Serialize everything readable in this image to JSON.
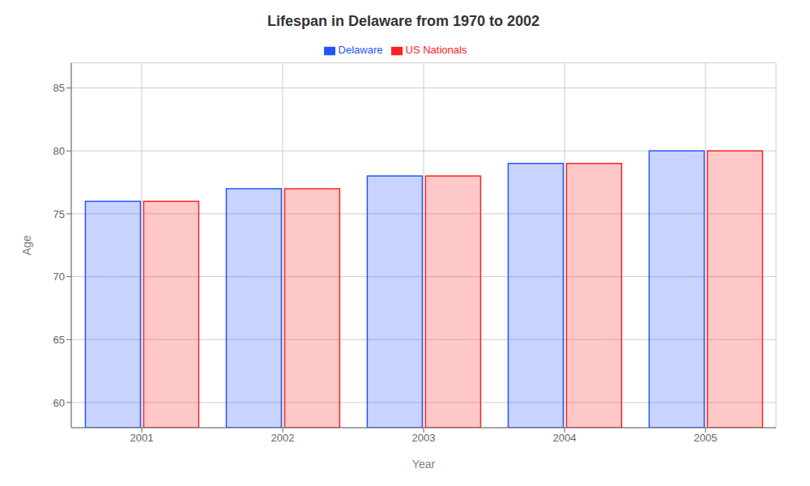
{
  "chart_data": {
    "type": "bar",
    "title": "Lifespan in Delaware from 1970 to 2002",
    "xlabel": "Year",
    "ylabel": "Age",
    "categories": [
      2001,
      2002,
      2003,
      2004,
      2005
    ],
    "series": [
      {
        "name": "Delaware",
        "color": "#2255ff",
        "values": [
          76,
          77,
          78,
          79,
          80
        ]
      },
      {
        "name": "US Nationals",
        "color": "#ff2222",
        "values": [
          76,
          77,
          78,
          79,
          80
        ]
      }
    ],
    "ylim": [
      58,
      87
    ],
    "yticks": [
      60,
      65,
      70,
      75,
      80,
      85
    ],
    "grid": true,
    "legend": "top"
  }
}
